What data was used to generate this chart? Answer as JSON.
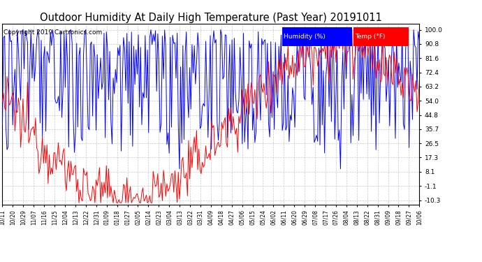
{
  "title": "Outdoor Humidity At Daily High Temperature (Past Year) 20191011",
  "copyright": "Copyright 2019 Cartronics.com",
  "legend_humidity": "Humidity (%)",
  "legend_temp": "Temp (°F)",
  "legend_bg_humidity": "#0000FF",
  "legend_bg_temp": "#FF0000",
  "legend_text_color": "#FFFFFF",
  "humidity_color": "#0000FF",
  "temp_color": "#FF0000",
  "background_color": "#FFFFFF",
  "plot_bg_color": "#FFFFFF",
  "grid_color": "#BBBBBB",
  "title_fontsize": 10.5,
  "copyright_fontsize": 7,
  "yticks": [
    100.0,
    90.8,
    81.6,
    72.4,
    63.2,
    54.0,
    44.8,
    35.7,
    26.5,
    17.3,
    8.1,
    -1.1,
    -10.3
  ],
  "ylim": [
    -13.0,
    104.0
  ],
  "xtick_labels": [
    "10/11",
    "10/20",
    "10/29",
    "11/07",
    "11/16",
    "11/25",
    "12/04",
    "12/13",
    "12/22",
    "12/31",
    "01/09",
    "01/18",
    "01/27",
    "02/05",
    "02/14",
    "02/23",
    "03/04",
    "03/13",
    "03/22",
    "03/31",
    "04/09",
    "04/18",
    "04/27",
    "05/06",
    "05/15",
    "05/24",
    "06/02",
    "06/11",
    "06/20",
    "06/29",
    "07/08",
    "07/17",
    "07/26",
    "08/04",
    "08/13",
    "08/22",
    "08/31",
    "09/09",
    "09/18",
    "09/27",
    "10/06"
  ],
  "n_points": 366
}
